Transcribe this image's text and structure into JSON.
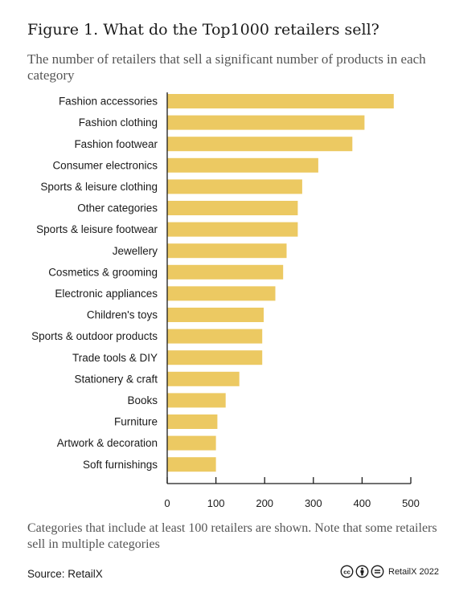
{
  "chart_data": {
    "type": "bar",
    "orientation": "horizontal",
    "title": "Figure 1. What do the Top1000 retailers sell?",
    "subtitle": "The number of retailers that sell a significant number of products in each category",
    "categories": [
      "Fashion accessories",
      "Fashion clothing",
      "Fashion footwear",
      "Consumer electronics",
      "Sports & leisure clothing",
      "Other categories",
      "Sports & leisure footwear",
      "Jewellery",
      "Cosmetics & grooming",
      "Electronic appliances",
      "Children's toys",
      "Sports & outdoor products",
      "Trade tools & DIY",
      "Stationery & craft",
      "Books",
      "Furniture",
      "Artwork & decoration",
      "Soft furnishings"
    ],
    "values": [
      465,
      405,
      380,
      310,
      277,
      268,
      268,
      245,
      238,
      222,
      198,
      195,
      195,
      148,
      120,
      103,
      100,
      100
    ],
    "xlim": [
      0,
      500
    ],
    "xticks": [
      0,
      100,
      200,
      300,
      400,
      500
    ],
    "bar_color": "#ecc962",
    "grid": false,
    "legend": "none"
  },
  "footer": {
    "note": "Categories that include at least 100 retailers are shown. Note that some retailers sell in multiple categories",
    "source": "Source: RetailX",
    "license_text": "RetailX 2022",
    "license_icons": [
      "cc-icon",
      "by-icon",
      "nd-icon"
    ]
  }
}
